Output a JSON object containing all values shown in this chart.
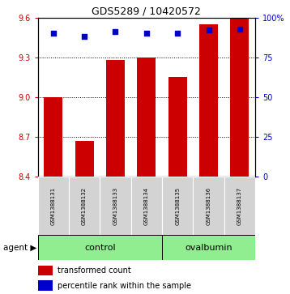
{
  "title": "GDS5289 / 10420572",
  "samples": [
    "GSM1388131",
    "GSM1388132",
    "GSM1388133",
    "GSM1388134",
    "GSM1388135",
    "GSM1388136",
    "GSM1388137"
  ],
  "bar_values": [
    9.0,
    8.67,
    9.28,
    9.3,
    9.15,
    9.55,
    9.6
  ],
  "percentile_values": [
    90,
    88,
    91,
    90,
    90,
    92,
    93
  ],
  "y_min": 8.4,
  "y_max": 9.6,
  "y_ticks": [
    8.4,
    8.7,
    9.0,
    9.3,
    9.6
  ],
  "right_y_ticks": [
    0,
    25,
    50,
    75,
    100
  ],
  "right_y_labels": [
    "0",
    "25",
    "50",
    "75",
    "100%"
  ],
  "bar_color": "#cc0000",
  "dot_color": "#0000cc",
  "control_samples": [
    0,
    1,
    2,
    3
  ],
  "ovalbumin_samples": [
    4,
    5,
    6
  ],
  "control_label": "control",
  "ovalbumin_label": "ovalbumin",
  "agent_label": "agent",
  "legend_bar_label": "transformed count",
  "legend_dot_label": "percentile rank within the sample",
  "control_color": "#90ee90",
  "ovalbumin_color": "#90ee90",
  "group_bg_color": "#d3d3d3",
  "bar_width": 0.6,
  "dot_size": 18,
  "title_fontsize": 9,
  "tick_fontsize": 7,
  "sample_fontsize": 5,
  "legend_fontsize": 7,
  "group_fontsize": 8
}
